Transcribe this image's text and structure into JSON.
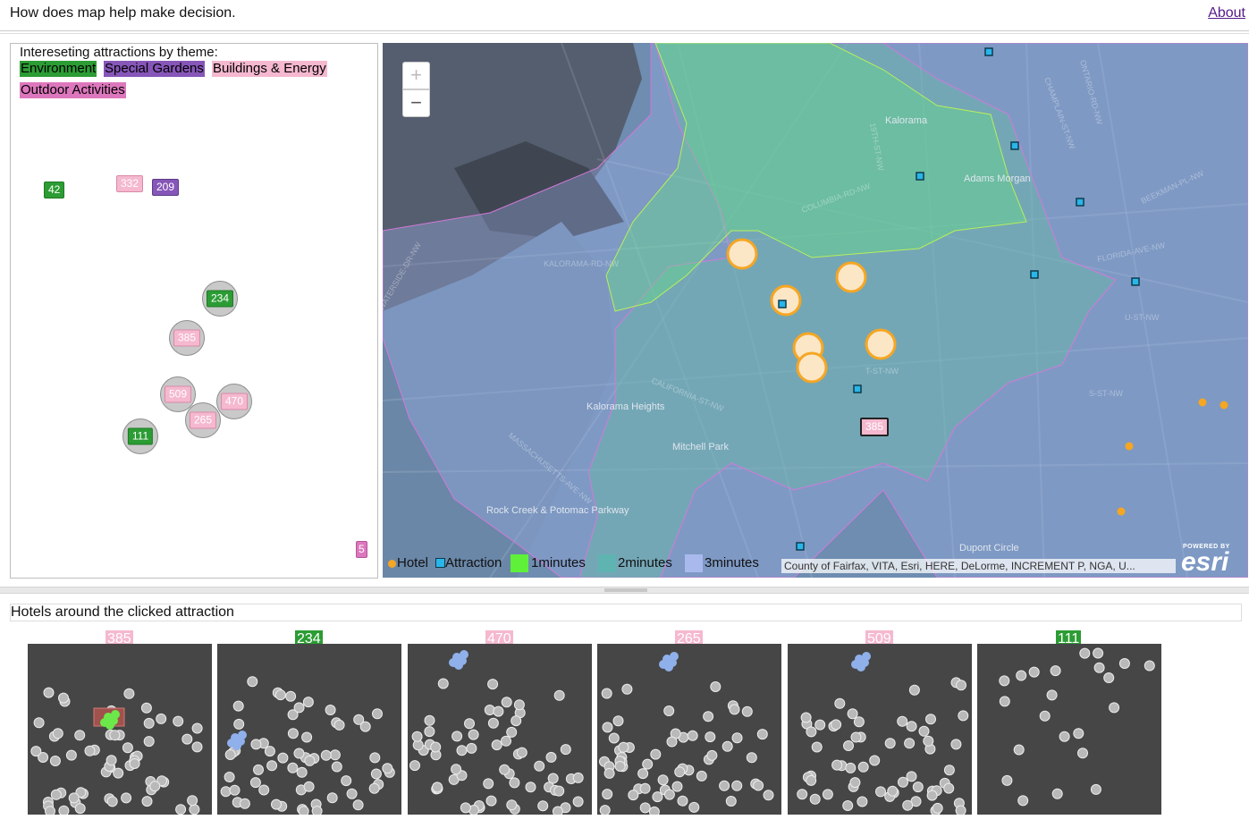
{
  "header": {
    "title": "How does map help make decision.",
    "about_label": "About"
  },
  "themes": {
    "heading": "Intereseting attractions by theme:",
    "items": [
      {
        "label": "Environment",
        "color": "#2c9c34"
      },
      {
        "label": "Special Gardens",
        "color": "#8656b8"
      },
      {
        "label": "Buildings & Energy",
        "color": "#f5b8cf"
      },
      {
        "label": "Outdoor Activities",
        "color": "#dd77bd"
      }
    ]
  },
  "attractions": {
    "tags": [
      {
        "label": "42",
        "theme": "Environment"
      },
      {
        "label": "332",
        "theme": "Buildings & Energy"
      },
      {
        "label": "209",
        "theme": "Special Gardens"
      },
      {
        "label": "5",
        "theme": "Outdoor Activities"
      }
    ],
    "clusters": [
      {
        "label": "234",
        "theme": "Environment"
      },
      {
        "label": "385",
        "theme": "Buildings & Energy"
      },
      {
        "label": "509",
        "theme": "Buildings & Energy"
      },
      {
        "label": "470",
        "theme": "Buildings & Energy"
      },
      {
        "label": "265",
        "theme": "Buildings & Energy"
      },
      {
        "label": "111",
        "theme": "Environment"
      }
    ]
  },
  "map": {
    "zoom_in": "+",
    "zoom_out": "−",
    "selected_attraction": "385",
    "place_labels": [
      "Kalorama",
      "Adams Morgan",
      "Kalorama Heights",
      "Mitchell Park",
      "Rock Creek & Potomac Parkway",
      "Dupont Circle"
    ],
    "street_labels": [
      "KALORAMA-RD-NW",
      "CALIFORNIA-ST-NW",
      "MASSACHUSETTS-AVE-NW",
      "FLORIDA-AVE-NW",
      "CHAMPLAIN-ST-NW",
      "BEEKMAN-PL-NW",
      "ONTARIO-RD-NW",
      "U-ST-NW",
      "T-ST-NW",
      "S-ST-NW",
      "19TH-ST-NW",
      "COLUMBIA-RD-NW",
      "WATERSIDE-DR-NW"
    ],
    "legend": {
      "hotel": "Hotel",
      "attraction": "Attraction",
      "m1": "1minutes",
      "m2": "2minutes",
      "m3": "3minutes"
    },
    "colors": {
      "hotel": "#f5a623",
      "attraction": "#29b6e8",
      "m1": "#5ff03a",
      "m2": "#5fb3b0",
      "m3": "#a9b9ee"
    },
    "attribution": "County of Fairfax, VITA, Esri, HERE, DeLorme, INCREMENT P, NGA, U...",
    "logo": {
      "small": "POWERED BY",
      "big": "esri"
    }
  },
  "hotels": {
    "heading": "Hotels around the clicked attraction",
    "cards": [
      {
        "label": "385",
        "theme": "Buildings & Energy"
      },
      {
        "label": "234",
        "theme": "Environment"
      },
      {
        "label": "470",
        "theme": "Buildings & Energy"
      },
      {
        "label": "265",
        "theme": "Buildings & Energy"
      },
      {
        "label": "509",
        "theme": "Buildings & Energy"
      },
      {
        "label": "111",
        "theme": "Environment"
      }
    ]
  }
}
